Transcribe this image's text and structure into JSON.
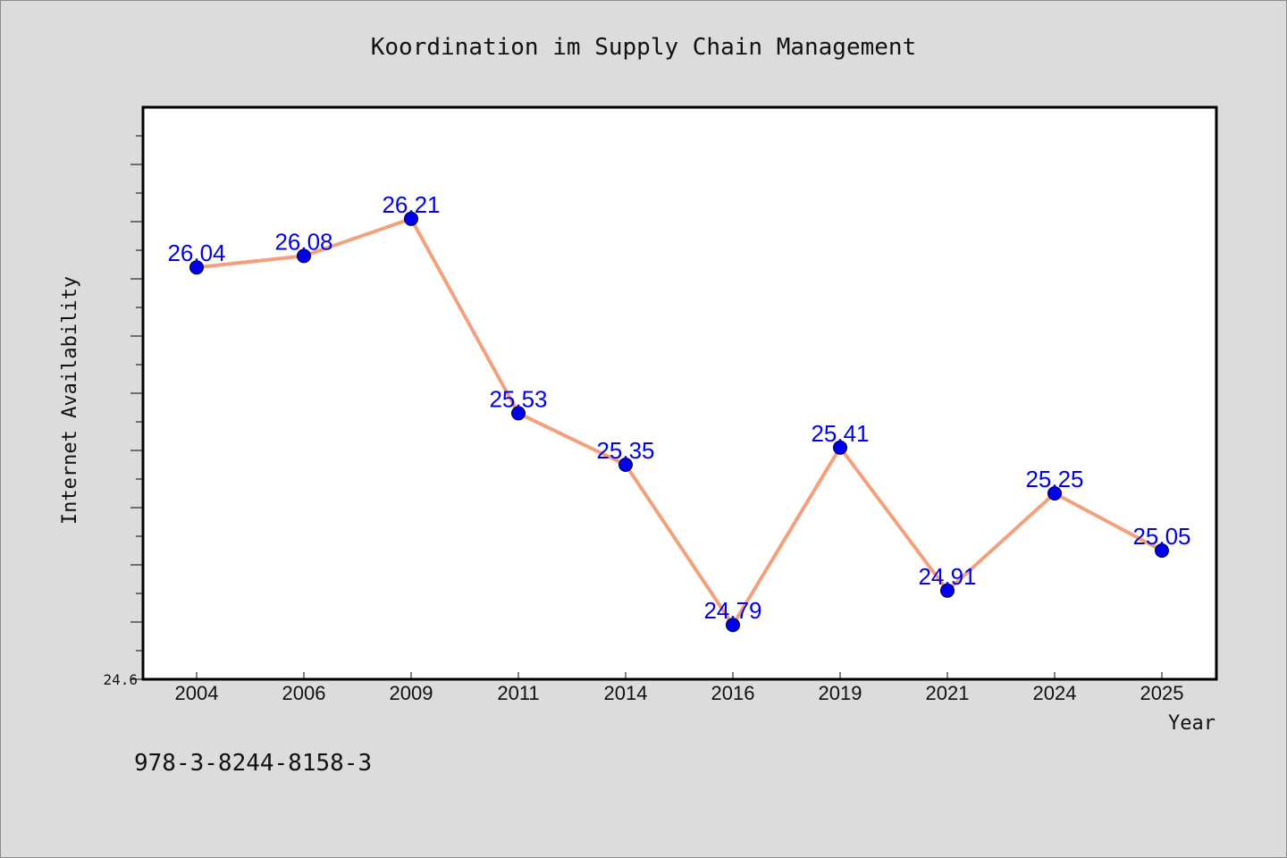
{
  "chart_data": {
    "type": "line",
    "title": "Koordination im Supply Chain Management",
    "xlabel": "Year",
    "ylabel": "Internet Availability",
    "categories": [
      "2004",
      "2006",
      "2009",
      "2011",
      "2014",
      "2016",
      "2019",
      "2021",
      "2024",
      "2025"
    ],
    "series": [
      {
        "values": [
          26.04,
          26.08,
          26.21,
          25.53,
          25.35,
          24.79,
          25.41,
          24.91,
          25.25,
          25.05
        ],
        "labels": [
          "26.04",
          "26.08",
          "26.21",
          "25.53",
          "25.35",
          "24.79",
          "25.41",
          "24.91",
          "25.25",
          "25.05"
        ],
        "line_color": "#f4a07c",
        "marker_color": "#0000ee",
        "label_color": "#0000ee"
      }
    ],
    "ylim": [
      24.6,
      26.6
    ],
    "yticks_labeled": [
      "24.6"
    ],
    "grid": false,
    "legend": "none"
  },
  "footer_text": "978-3-8244-8158-3",
  "colors": {
    "background": "#dcdcdc",
    "plot_background": "#ffffff"
  }
}
